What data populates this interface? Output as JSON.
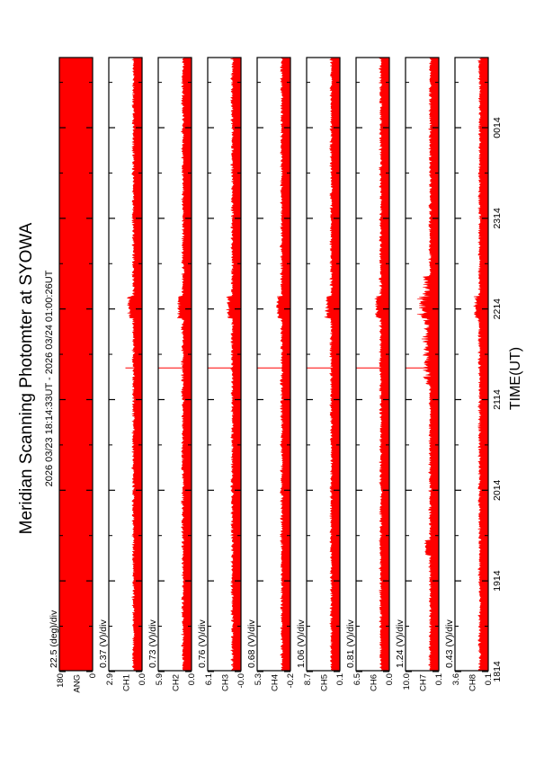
{
  "chart_data": {
    "type": "line",
    "title": "Meridian Scanning Photomter at SYOWA",
    "subtitle": "2026 03/23 18:14:33UT - 2026 03/24 01:00:26UT",
    "xlabel": "TIME(UT)",
    "x_ticks": [
      "1814",
      "1914",
      "2014",
      "2114",
      "2214",
      "2314",
      "0014"
    ],
    "x_tick_hours": [
      18.2333,
      19.2333,
      20.2333,
      21.2333,
      22.2333,
      23.2333,
      24.2333
    ],
    "x_range_hours": [
      18.2425,
      25.0072
    ],
    "grid": false,
    "series": [
      {
        "name": "ANG",
        "unit": "deg",
        "scale_label": "22.5 (deg)/div",
        "ylim": [
          0,
          180
        ],
        "y_ticks": [
          "180",
          "0"
        ],
        "pattern": "sweep"
      },
      {
        "name": "CH1",
        "unit": "V",
        "scale_label": "0.37 (V)/div",
        "ylim": [
          0.0,
          2.9
        ],
        "y_ticks": [
          "2.9",
          "0.0"
        ]
      },
      {
        "name": "CH2",
        "unit": "V",
        "scale_label": "0.73 (V)/div",
        "ylim": [
          0.0,
          5.9
        ],
        "y_ticks": [
          "5.9",
          "0.0"
        ]
      },
      {
        "name": "CH3",
        "unit": "V",
        "scale_label": "0.76 (V)/div",
        "ylim": [
          -0.0,
          6.1
        ],
        "y_ticks": [
          "6.1",
          "-0.0"
        ]
      },
      {
        "name": "CH4",
        "unit": "V",
        "scale_label": "0.68 (V)/div",
        "ylim": [
          -0.2,
          5.3
        ],
        "y_ticks": [
          "5.3",
          "-0.2"
        ]
      },
      {
        "name": "CH5",
        "unit": "V",
        "scale_label": "1.06 (V)/div",
        "ylim": [
          0.1,
          8.7
        ],
        "y_ticks": [
          "8.7",
          "0.1"
        ]
      },
      {
        "name": "CH6",
        "unit": "V",
        "scale_label": "0.81 (V)/div",
        "ylim": [
          0.0,
          6.5
        ],
        "y_ticks": [
          "6.5",
          "0.0"
        ]
      },
      {
        "name": "CH7",
        "unit": "V",
        "scale_label": "1.24 (V)/div",
        "ylim": [
          0.1,
          10.0
        ],
        "y_ticks": [
          "10.0",
          "0.1"
        ]
      },
      {
        "name": "CH8",
        "unit": "V",
        "scale_label": "0.43 (V)/div",
        "ylim": [
          0.1,
          3.6
        ],
        "y_ticks": [
          "3.6",
          "0.1"
        ]
      }
    ],
    "colors": {
      "data": "#ff0000",
      "axes": "#000000",
      "background": "#ffffff"
    }
  }
}
